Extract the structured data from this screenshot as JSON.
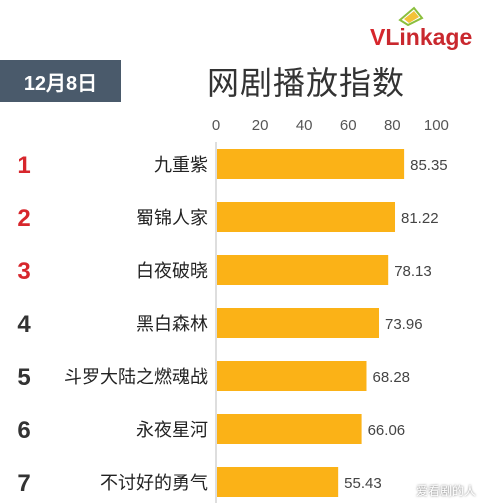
{
  "header": {
    "date_label": "12月8日",
    "title": "网剧播放指数",
    "logo_text_v": "V",
    "logo_text_rest": "Linkage"
  },
  "watermark": "爱看剧的人",
  "colors": {
    "bar": "#fbb217",
    "rank_red": "#d7262c",
    "rank_dark": "#333333",
    "badge": "#4a5a6b"
  },
  "chart_data": {
    "type": "bar",
    "orientation": "horizontal",
    "title": "网剧播放指数",
    "categories": [
      "九重紫",
      "蜀锦人家",
      "白夜破晓",
      "黑白森林",
      "斗罗大陆之燃魂战",
      "永夜星河",
      "不讨好的勇气"
    ],
    "ranks": [
      "1",
      "2",
      "3",
      "4",
      "5",
      "6",
      "7"
    ],
    "values": [
      85.35,
      81.22,
      78.13,
      73.96,
      68.28,
      66.06,
      55.43
    ],
    "value_labels": [
      "85.35",
      "81.22",
      "78.13",
      "73.96",
      "68.28",
      "66.06",
      "55.43"
    ],
    "xlim": [
      0,
      100
    ],
    "xticks": [
      "0",
      "20",
      "40",
      "60",
      "80",
      "100"
    ],
    "grid": false,
    "legend": "none"
  }
}
